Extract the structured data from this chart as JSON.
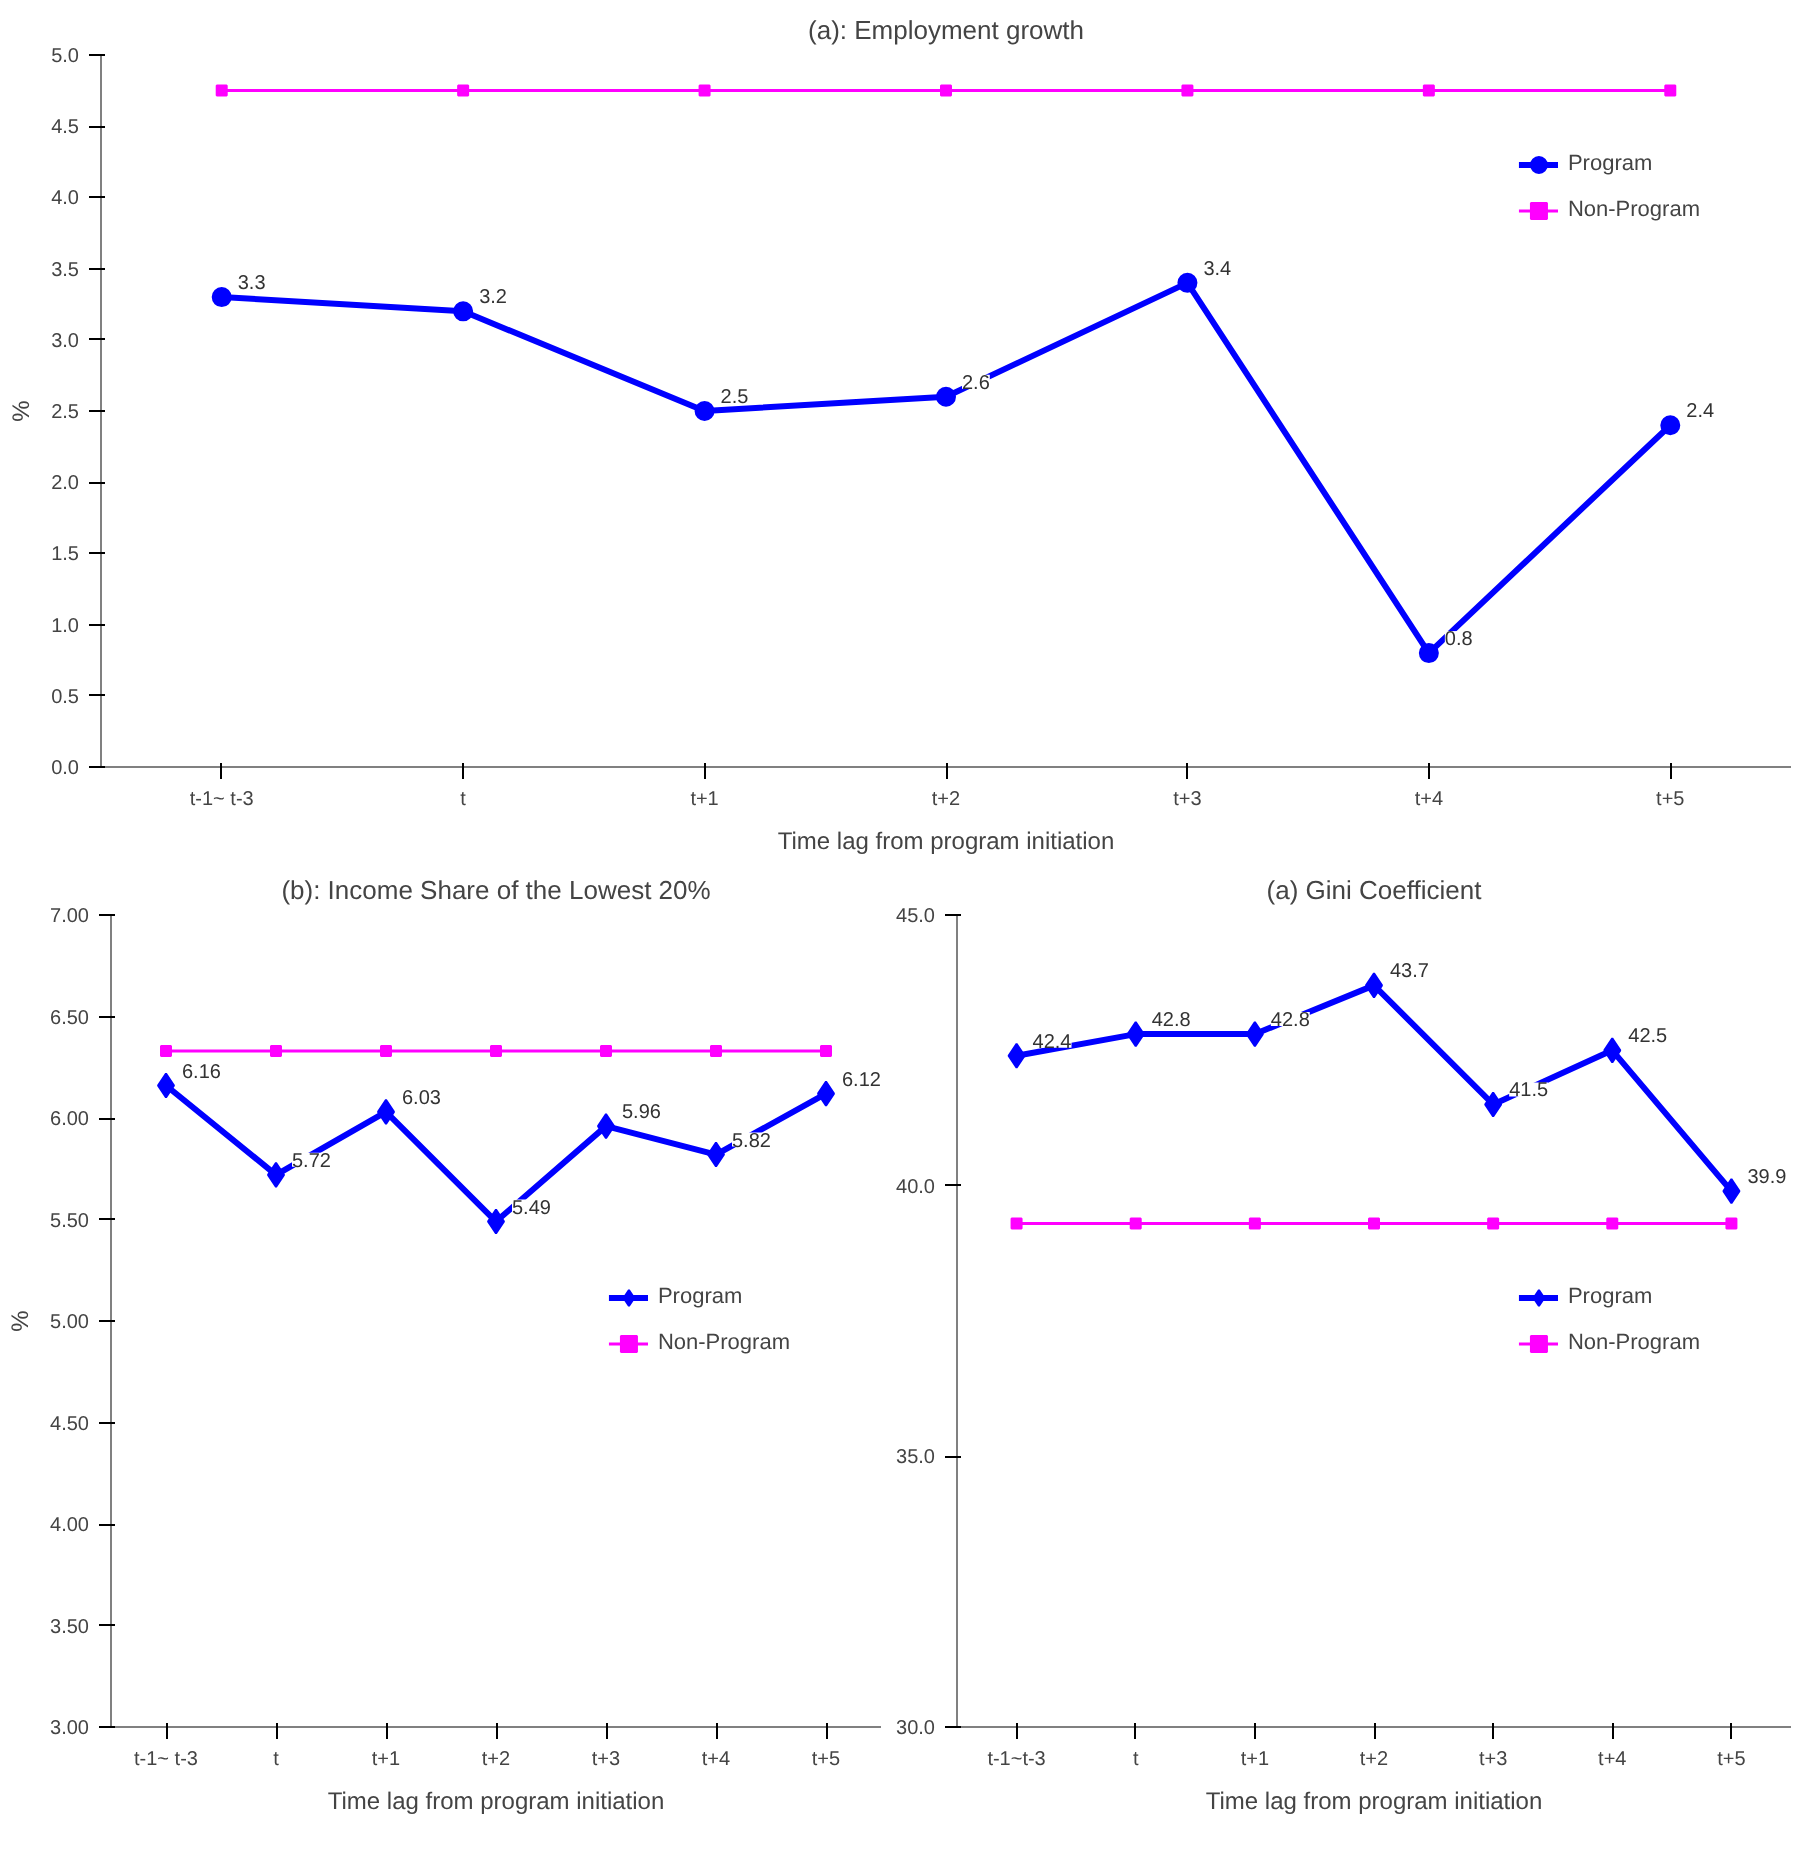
{
  "chart_data": [
    {
      "type": "line",
      "title": "(a): Employment growth",
      "xlabel": "Time lag from program initiation",
      "ylabel": "%",
      "categories": [
        "t-1~ t-3",
        "t",
        "t+1",
        "t+2",
        "t+3",
        "t+4",
        "t+5"
      ],
      "ylim": [
        0,
        5
      ],
      "yticks": [
        {
          "value": 0,
          "label": "0.0"
        },
        {
          "value": 0.5,
          "label": "0.5"
        },
        {
          "value": 1,
          "label": "1.0"
        },
        {
          "value": 1.5,
          "label": "1.5"
        },
        {
          "value": 2,
          "label": "2.0"
        },
        {
          "value": 2.5,
          "label": "2.5"
        },
        {
          "value": 3,
          "label": "3.0"
        },
        {
          "value": 3.5,
          "label": "3.5"
        },
        {
          "value": 4,
          "label": "4.0"
        },
        {
          "value": 4.5,
          "label": "4.5"
        },
        {
          "value": 5,
          "label": "5.0"
        }
      ],
      "grid": false,
      "legend": "top right",
      "series": [
        {
          "name": "Program",
          "color": "#0000ff",
          "marker": "circle",
          "values": [
            3.3,
            3.2,
            2.5,
            2.6,
            3.4,
            0.8,
            2.4
          ],
          "value_labels": [
            "3.3",
            "3.2",
            "2.5",
            "2.6",
            "3.4",
            "0.8",
            "2.4"
          ]
        },
        {
          "name": "Non-Program",
          "color": "#ff00ff",
          "marker": "square",
          "values": [
            4.75,
            4.75,
            4.75,
            4.75,
            4.75,
            4.75,
            4.75
          ]
        }
      ]
    },
    {
      "type": "line",
      "title": "(b): Income Share of the Lowest 20%",
      "xlabel": "Time lag from program initiation",
      "ylabel": "%",
      "categories": [
        "t-1~ t-3",
        "t",
        "t+1",
        "t+2",
        "t+3",
        "t+4",
        "t+5"
      ],
      "ylim": [
        3,
        7
      ],
      "yticks": [
        {
          "value": 3,
          "label": "3.00"
        },
        {
          "value": 3.5,
          "label": "3.50"
        },
        {
          "value": 4,
          "label": "4.00"
        },
        {
          "value": 4.5,
          "label": "4.50"
        },
        {
          "value": 5,
          "label": "5.00"
        },
        {
          "value": 5.5,
          "label": "5.50"
        },
        {
          "value": 6,
          "label": "6.00"
        },
        {
          "value": 6.5,
          "label": "6.50"
        },
        {
          "value": 7,
          "label": "7.00"
        }
      ],
      "grid": false,
      "legend": "right",
      "series": [
        {
          "name": "Program",
          "color": "#0000ff",
          "marker": "diamond",
          "values": [
            6.16,
            5.72,
            6.03,
            5.49,
            5.96,
            5.82,
            6.12
          ],
          "value_labels": [
            "6.16",
            "5.72",
            "6.03",
            "5.49",
            "5.96",
            "5.82",
            "6.12"
          ]
        },
        {
          "name": "Non-Program",
          "color": "#ff00ff",
          "marker": "square",
          "values": [
            6.33,
            6.33,
            6.33,
            6.33,
            6.33,
            6.33,
            6.33
          ]
        }
      ]
    },
    {
      "type": "line",
      "title": "(a) Gini Coefficient",
      "xlabel": "Time lag from program initiation",
      "categories": [
        "t-1~t-3",
        "t",
        "t+1",
        "t+2",
        "t+3",
        "t+4",
        "t+5"
      ],
      "ylim": [
        30,
        45
      ],
      "yticks": [
        {
          "value": 30,
          "label": "30.0"
        },
        {
          "value": 35,
          "label": "35.0"
        },
        {
          "value": 40,
          "label": "40.0"
        },
        {
          "value": 45,
          "label": "45.0"
        }
      ],
      "grid": false,
      "legend": "right",
      "series": [
        {
          "name": "Program",
          "color": "#0000ff",
          "marker": "diamond",
          "values": [
            42.4,
            42.8,
            42.8,
            43.7,
            41.5,
            42.5,
            39.9
          ],
          "value_labels": [
            "42.4",
            "42.8",
            "42.8",
            "43.7",
            "41.5",
            "42.5",
            "39.9"
          ]
        },
        {
          "name": "Non-Program",
          "color": "#ff00ff",
          "marker": "square",
          "values": [
            39.3,
            39.3,
            39.3,
            39.3,
            39.3,
            39.3,
            39.3
          ]
        }
      ]
    }
  ]
}
